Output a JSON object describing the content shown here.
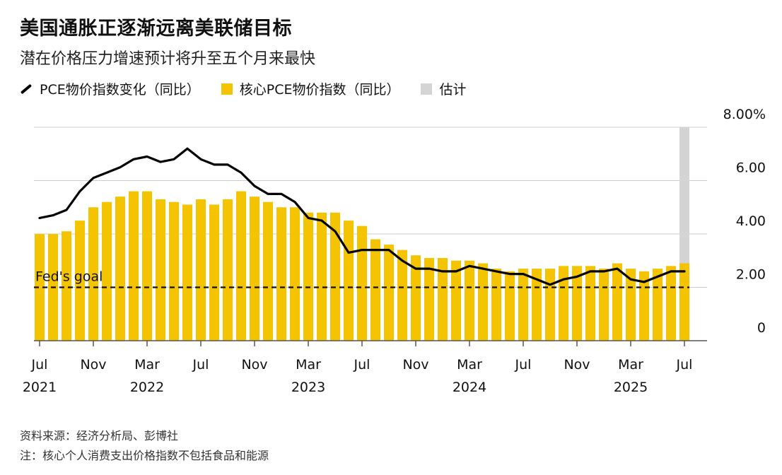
{
  "title": "美国通胀正逐渐远离美联储目标",
  "subtitle": "潜在价格压力增速预计将升至五个月来最快",
  "legend": {
    "pce": "PCE物价指数变化（同比）",
    "core": "核心PCE物价指数（同比）",
    "estimate": "估计"
  },
  "annotation": "Fed's goal",
  "footer": {
    "source": "资料来源：经济分析局、彭博社",
    "note": "注：核心个人消费支出价格指数不包括食品和能源"
  },
  "colors": {
    "bar": "#f5c400",
    "line": "#000000",
    "estimate": "#d4d4d4",
    "grid": "#cccccc"
  },
  "chart_data": {
    "type": "bar+line",
    "x": [
      "2021-07",
      "2021-08",
      "2021-09",
      "2021-10",
      "2021-11",
      "2021-12",
      "2022-01",
      "2022-02",
      "2022-03",
      "2022-04",
      "2022-05",
      "2022-06",
      "2022-07",
      "2022-08",
      "2022-09",
      "2022-10",
      "2022-11",
      "2022-12",
      "2023-01",
      "2023-02",
      "2023-03",
      "2023-04",
      "2023-05",
      "2023-06",
      "2023-07",
      "2023-08",
      "2023-09",
      "2023-10",
      "2023-11",
      "2023-12",
      "2024-01",
      "2024-02",
      "2024-03",
      "2024-04",
      "2024-05",
      "2024-06",
      "2024-07",
      "2024-08",
      "2024-09",
      "2024-10",
      "2024-11",
      "2024-12",
      "2025-01",
      "2025-02",
      "2025-03",
      "2025-04",
      "2025-05",
      "2025-06",
      "2025-07"
    ],
    "series": [
      {
        "name": "核心PCE物价指数（同比）",
        "type": "bar",
        "values": [
          4.0,
          4.0,
          4.1,
          4.5,
          5.0,
          5.2,
          5.4,
          5.6,
          5.6,
          5.3,
          5.2,
          5.1,
          5.3,
          5.1,
          5.3,
          5.6,
          5.4,
          5.2,
          5.0,
          5.0,
          4.8,
          4.8,
          4.8,
          4.5,
          4.3,
          3.8,
          3.6,
          3.4,
          3.2,
          3.1,
          3.1,
          3.0,
          3.0,
          2.9,
          2.7,
          2.6,
          2.7,
          2.7,
          2.7,
          2.8,
          2.8,
          2.8,
          2.7,
          2.9,
          2.7,
          2.6,
          2.7,
          2.8,
          2.9
        ]
      },
      {
        "name": "PCE物价指数变化（同比）",
        "type": "line",
        "values": [
          4.6,
          4.7,
          4.9,
          5.6,
          6.1,
          6.3,
          6.5,
          6.8,
          6.9,
          6.7,
          6.8,
          7.2,
          6.8,
          6.6,
          6.6,
          6.3,
          5.8,
          5.5,
          5.5,
          5.2,
          4.6,
          4.5,
          4.1,
          3.3,
          3.4,
          3.4,
          3.4,
          3.0,
          2.7,
          2.7,
          2.6,
          2.6,
          2.8,
          2.7,
          2.6,
          2.5,
          2.5,
          2.3,
          2.1,
          2.3,
          2.4,
          2.6,
          2.6,
          2.7,
          2.3,
          2.2,
          2.4,
          2.6,
          2.6
        ]
      }
    ],
    "estimate_index": 48,
    "reference_line": {
      "label": "Fed's goal",
      "value": 2.0
    },
    "ylim": [
      0,
      8
    ],
    "yticks": [
      {
        "value": 0,
        "label": "0"
      },
      {
        "value": 2,
        "label": "2.00"
      },
      {
        "value": 4,
        "label": "4.00"
      },
      {
        "value": 6,
        "label": "6.00"
      },
      {
        "value": 8,
        "label": "8.00%"
      }
    ],
    "xticks": [
      {
        "index": 0,
        "label": "Jul",
        "year": "2021"
      },
      {
        "index": 4,
        "label": "Nov",
        "year": ""
      },
      {
        "index": 8,
        "label": "Mar",
        "year": "2022"
      },
      {
        "index": 12,
        "label": "Jul",
        "year": ""
      },
      {
        "index": 16,
        "label": "Nov",
        "year": ""
      },
      {
        "index": 20,
        "label": "Mar",
        "year": "2023"
      },
      {
        "index": 24,
        "label": "Jul",
        "year": ""
      },
      {
        "index": 28,
        "label": "Nov",
        "year": ""
      },
      {
        "index": 32,
        "label": "Mar",
        "year": "2024"
      },
      {
        "index": 36,
        "label": "Jul",
        "year": ""
      },
      {
        "index": 40,
        "label": "Nov",
        "year": ""
      },
      {
        "index": 44,
        "label": "Mar",
        "year": "2025"
      },
      {
        "index": 48,
        "label": "Jul",
        "year": ""
      }
    ],
    "grid": true,
    "legend_position": "top-left"
  }
}
